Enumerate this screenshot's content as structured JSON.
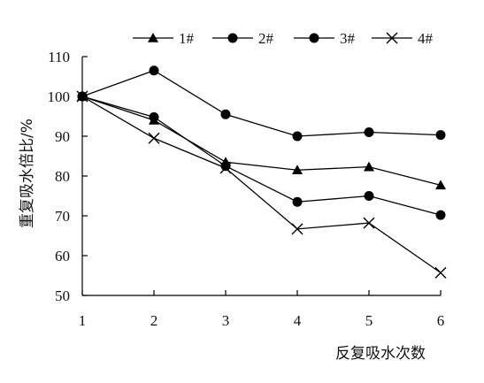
{
  "chart_data": {
    "type": "line",
    "title": "",
    "xlabel": "反复吸水次数",
    "ylabel": "重复吸水倍比/%",
    "x": [
      1,
      2,
      3,
      4,
      5,
      6
    ],
    "x_tick_labels": [
      "1",
      "2",
      "3",
      "4",
      "5",
      "6"
    ],
    "y_tick_labels": [
      "50",
      "60",
      "70",
      "80",
      "90",
      "100",
      "110"
    ],
    "ylim": [
      50,
      110
    ],
    "y_ticks": [
      50,
      60,
      70,
      80,
      90,
      100,
      110
    ],
    "grid": false,
    "legend_position": "top",
    "series": [
      {
        "name": "1#",
        "marker": "triangle",
        "values": [
          100,
          94,
          83.5,
          81.5,
          82.3,
          77.7
        ]
      },
      {
        "name": "2#",
        "marker": "circle",
        "values": [
          100,
          106.5,
          95.5,
          90,
          91,
          90.3
        ]
      },
      {
        "name": "3#",
        "marker": "circle",
        "values": [
          100,
          94.8,
          82.5,
          73.5,
          75,
          70.2
        ]
      },
      {
        "name": "4#",
        "marker": "x",
        "values": [
          100,
          89.5,
          82,
          66.7,
          68.2,
          55.7
        ]
      }
    ],
    "color": "#000000"
  }
}
